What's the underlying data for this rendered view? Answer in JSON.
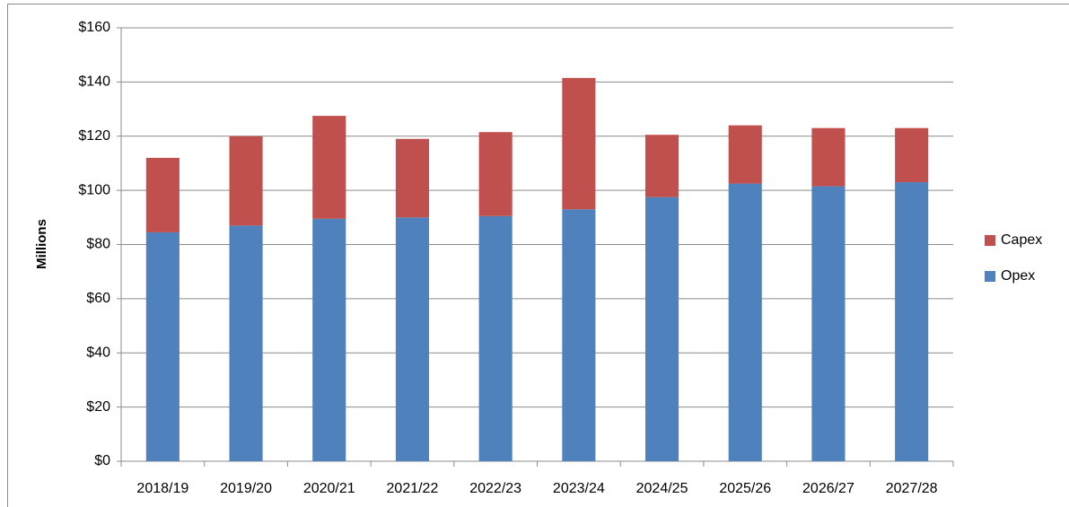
{
  "chart_data": {
    "type": "bar",
    "stacked": true,
    "y_label": "Millions",
    "categories": [
      "2018/19",
      "2019/20",
      "2020/21",
      "2021/22",
      "2022/23",
      "2023/24",
      "2024/25",
      "2025/26",
      "2026/27",
      "2027/28"
    ],
    "series": [
      {
        "name": "Opex",
        "color": "#4f81bd",
        "values": [
          84.5,
          87,
          89.5,
          90,
          90.5,
          93,
          97.5,
          102.5,
          101.5,
          103
        ]
      },
      {
        "name": "Capex",
        "color": "#c0504d",
        "values": [
          27.5,
          33,
          38,
          29,
          31,
          48.5,
          23,
          21.5,
          21.5,
          20
        ]
      }
    ],
    "ylim": [
      0,
      160
    ],
    "yticks": [
      {
        "value": 0,
        "label": "$0"
      },
      {
        "value": 20,
        "label": "$20"
      },
      {
        "value": 40,
        "label": "$40"
      },
      {
        "value": 60,
        "label": "$60"
      },
      {
        "value": 80,
        "label": "$80"
      },
      {
        "value": 100,
        "label": "$100"
      },
      {
        "value": 120,
        "label": "$120"
      },
      {
        "value": 140,
        "label": "$140"
      },
      {
        "value": 160,
        "label": "$160"
      }
    ],
    "grid": true,
    "legend": "right"
  }
}
